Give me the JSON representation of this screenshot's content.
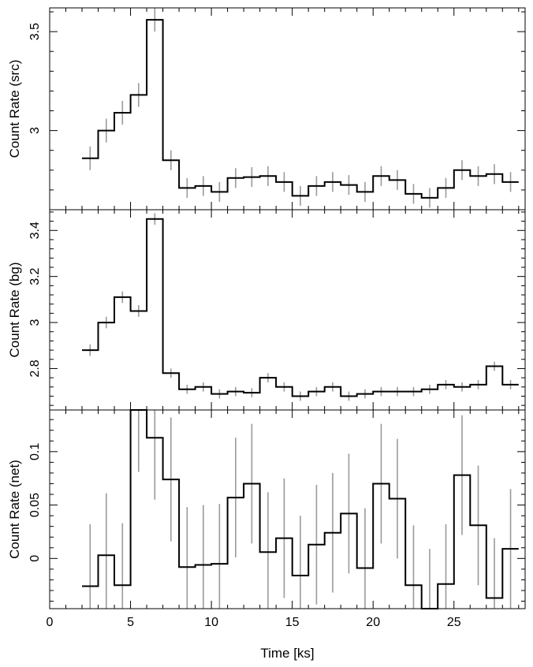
{
  "chart_data": [
    {
      "type": "line",
      "step": true,
      "ylabel": "Count Rate (src)",
      "xlabel": "",
      "xlim": [
        0,
        29.4
      ],
      "ylim": [
        2.6,
        3.62
      ],
      "yticks": [
        "3",
        "3.5"
      ],
      "ytick_values": [
        3,
        3.5
      ],
      "bin_width": 1.0,
      "x": [
        2.5,
        3.5,
        4.5,
        5.5,
        6.5,
        7.5,
        8.5,
        9.5,
        10.5,
        11.5,
        12.5,
        13.5,
        14.5,
        15.5,
        16.5,
        17.5,
        18.5,
        19.5,
        20.5,
        21.5,
        22.5,
        23.5,
        24.5,
        25.5,
        26.5,
        27.5,
        28.5
      ],
      "values": [
        2.86,
        3.0,
        3.09,
        3.18,
        3.56,
        2.85,
        2.71,
        2.72,
        2.69,
        2.76,
        2.765,
        2.77,
        2.74,
        2.67,
        2.72,
        2.74,
        2.725,
        2.69,
        2.77,
        2.75,
        2.68,
        2.66,
        2.71,
        2.8,
        2.77,
        2.78,
        2.74
      ],
      "errors": [
        0.06,
        0.06,
        0.06,
        0.06,
        0.06,
        0.05,
        0.05,
        0.05,
        0.05,
        0.05,
        0.05,
        0.05,
        0.05,
        0.05,
        0.05,
        0.05,
        0.05,
        0.05,
        0.05,
        0.05,
        0.05,
        0.05,
        0.05,
        0.05,
        0.05,
        0.05,
        0.05
      ]
    },
    {
      "type": "line",
      "step": true,
      "ylabel": "Count Rate (bg)",
      "xlabel": "",
      "xlim": [
        0,
        29.4
      ],
      "ylim": [
        2.62,
        3.49
      ],
      "yticks": [
        "2.8",
        "3",
        "3.2",
        "3.4"
      ],
      "ytick_values": [
        2.8,
        3.0,
        3.2,
        3.4
      ],
      "bin_width": 1.0,
      "x": [
        2.5,
        3.5,
        4.5,
        5.5,
        6.5,
        7.5,
        8.5,
        9.5,
        10.5,
        11.5,
        12.5,
        13.5,
        14.5,
        15.5,
        16.5,
        17.5,
        18.5,
        19.5,
        20.5,
        21.5,
        22.5,
        23.5,
        24.5,
        25.5,
        26.5,
        27.5,
        28.5
      ],
      "values": [
        2.88,
        3.0,
        3.11,
        3.05,
        3.45,
        2.78,
        2.71,
        2.72,
        2.69,
        2.7,
        2.695,
        2.76,
        2.72,
        2.68,
        2.7,
        2.72,
        2.68,
        2.69,
        2.7,
        2.7,
        2.7,
        2.71,
        2.73,
        2.72,
        2.73,
        2.81,
        2.73
      ],
      "errors": [
        0.025,
        0.025,
        0.025,
        0.025,
        0.025,
        0.02,
        0.02,
        0.02,
        0.02,
        0.02,
        0.02,
        0.02,
        0.02,
        0.02,
        0.02,
        0.02,
        0.02,
        0.02,
        0.02,
        0.02,
        0.02,
        0.02,
        0.02,
        0.02,
        0.02,
        0.02,
        0.02
      ]
    },
    {
      "type": "line",
      "step": true,
      "ylabel": "Count Rate (net)",
      "xlabel": "Time [ks]",
      "xlim": [
        0,
        29.4
      ],
      "xticks": [
        "0",
        "5",
        "10",
        "15",
        "20",
        "25"
      ],
      "xtick_values": [
        0,
        5,
        10,
        15,
        20,
        25
      ],
      "ylim": [
        -0.047,
        0.139
      ],
      "yticks": [
        "0",
        "0.05",
        "0.1"
      ],
      "ytick_values": [
        0,
        0.05,
        0.1
      ],
      "bin_width": 1.0,
      "x": [
        2.5,
        3.5,
        4.5,
        5.5,
        6.5,
        7.5,
        8.5,
        9.5,
        10.5,
        11.5,
        12.5,
        13.5,
        14.5,
        15.5,
        16.5,
        17.5,
        18.5,
        19.5,
        20.5,
        21.5,
        22.5,
        23.5,
        24.5,
        25.5,
        26.5,
        27.5,
        28.5
      ],
      "values": [
        -0.026,
        0.003,
        -0.025,
        0.139,
        0.113,
        0.074,
        -0.008,
        -0.006,
        -0.005,
        0.057,
        0.07,
        0.006,
        0.019,
        -0.016,
        0.013,
        0.024,
        0.042,
        -0.009,
        0.07,
        0.056,
        -0.025,
        -0.047,
        -0.024,
        0.078,
        0.031,
        -0.037,
        0.009
      ],
      "errors": [
        0.058,
        0.058,
        0.058,
        0.058,
        0.058,
        0.058,
        0.056,
        0.056,
        0.056,
        0.056,
        0.056,
        0.056,
        0.056,
        0.056,
        0.056,
        0.056,
        0.056,
        0.056,
        0.056,
        0.056,
        0.056,
        0.056,
        0.056,
        0.056,
        0.056,
        0.056,
        0.056
      ]
    }
  ],
  "colors": {
    "step_line": "#000000",
    "error_bar": "#9a9a9a",
    "frame": "#000000"
  }
}
